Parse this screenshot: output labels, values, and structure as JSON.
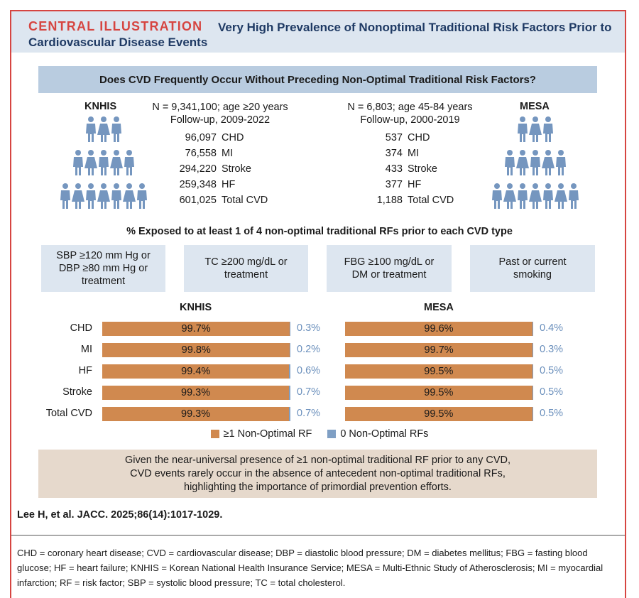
{
  "header": {
    "label": "CENTRAL ILLUSTRATION",
    "title": "Very High Prevalence of Nonoptimal Traditional Risk Factors Prior to Cardiovascular Disease Events"
  },
  "question": "Does CVD Frequently Occur Without Preceding Non-Optimal Traditional Risk Factors?",
  "knhis": {
    "name": "KNHIS",
    "line1": "N = 9,341,100; age ≥20 years",
    "line2": "Follow-up, 2009-2022",
    "events": [
      {
        "num": "96,097",
        "label": "CHD"
      },
      {
        "num": "76,558",
        "label": "MI"
      },
      {
        "num": "294,220",
        "label": "Stroke"
      },
      {
        "num": "259,348",
        "label": "HF"
      },
      {
        "num": "601,025",
        "label": "Total CVD"
      }
    ]
  },
  "mesa": {
    "name": "MESA",
    "line1": "N = 6,803; age 45-84 years",
    "line2": "Follow-up, 2000-2019",
    "events": [
      {
        "num": "537",
        "label": "CHD"
      },
      {
        "num": "374",
        "label": "MI"
      },
      {
        "num": "433",
        "label": "Stroke"
      },
      {
        "num": "377",
        "label": "HF"
      },
      {
        "num": "1,188",
        "label": "Total CVD"
      }
    ]
  },
  "exposed_title": "% Exposed to at least 1 of 4 non-optimal traditional RFs prior to each CVD type",
  "risk_factors": [
    {
      "line1": "SBP ≥120 mm Hg or",
      "line2": "DBP ≥80 mm Hg or",
      "line3": "treatment"
    },
    {
      "line1": "TC ≥200 mg/dL or",
      "line2": "treatment",
      "line3": ""
    },
    {
      "line1": "FBG ≥100 mg/dL or",
      "line2": "DM or treatment",
      "line3": ""
    },
    {
      "line1": "Past or current",
      "line2": "smoking",
      "line3": ""
    }
  ],
  "colors": {
    "accent": "#d64541",
    "title_navy": "#1f3a64",
    "bar_orange": "#d0894f",
    "bar_blue": "#7f9fc4",
    "zero_text": "#6a8fbc",
    "header_bg": "#dde6f0",
    "question_bg": "#b9cce0",
    "conclusion_bg": "#e6d9cc"
  },
  "chart_data": [
    {
      "type": "bar",
      "title": "KNHIS",
      "orientation": "horizontal",
      "stacked": true,
      "categories": [
        "CHD",
        "MI",
        "HF",
        "Stroke",
        "Total CVD"
      ],
      "series": [
        {
          "name": "≥1 Non-Optimal RF",
          "values": [
            99.7,
            99.8,
            99.4,
            99.3,
            99.3
          ],
          "labels": [
            "99.7%",
            "99.8%",
            "99.4%",
            "99.3%",
            "99.3%"
          ]
        },
        {
          "name": "0 Non-Optimal RFs",
          "values": [
            0.3,
            0.2,
            0.6,
            0.7,
            0.7
          ],
          "labels": [
            "0.3%",
            "0.2%",
            "0.6%",
            "0.7%",
            "0.7%"
          ]
        }
      ],
      "xlim": [
        0,
        100
      ]
    },
    {
      "type": "bar",
      "title": "MESA",
      "orientation": "horizontal",
      "stacked": true,
      "categories": [
        "CHD",
        "MI",
        "HF",
        "Stroke",
        "Total CVD"
      ],
      "series": [
        {
          "name": "≥1 Non-Optimal RF",
          "values": [
            99.6,
            99.7,
            99.5,
            99.5,
            99.5
          ],
          "labels": [
            "99.6%",
            "99.7%",
            "99.5%",
            "99.5%",
            "99.5%"
          ]
        },
        {
          "name": "0 Non-Optimal RFs",
          "values": [
            0.4,
            0.3,
            0.5,
            0.5,
            0.5
          ],
          "labels": [
            "0.4%",
            "0.3%",
            "0.5%",
            "0.5%",
            "0.5%"
          ]
        }
      ],
      "xlim": [
        0,
        100
      ]
    }
  ],
  "legend": {
    "item1": "≥1 Non-Optimal RF",
    "item2": "0 Non-Optimal RFs"
  },
  "conclusion": {
    "line1": "Given the near-universal presence of ≥1 non-optimal traditional RF prior to any CVD,",
    "line2": "CVD events rarely occur in the absence of antecedent non-optimal traditional RFs,",
    "line3": "highlighting the importance of primordial prevention efforts."
  },
  "citation": "Lee H, et al. JACC. 2025;86(14):1017-1029.",
  "abbreviations": "CHD = coronary heart disease; CVD = cardiovascular disease; DBP = diastolic blood pressure; DM = diabetes mellitus; FBG = fasting blood glucose; HF = heart failure; KNHIS = Korean National Health Insurance Service; MESA = Multi-Ethnic Study of Atherosclerosis; MI = myocardial infarction; RF = risk factor; SBP = systolic blood pressure; TC = total cholesterol."
}
